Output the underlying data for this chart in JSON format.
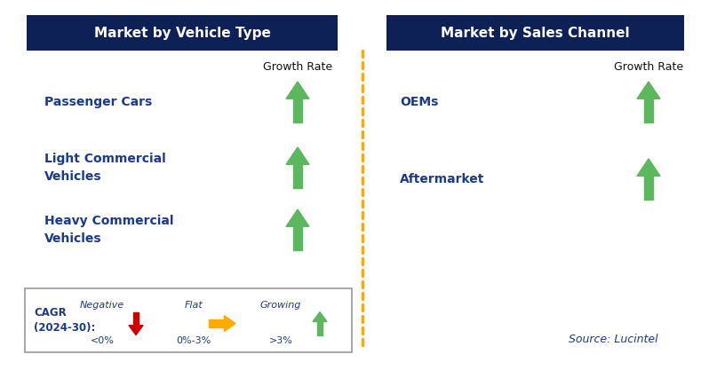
{
  "title_left": "Market by Vehicle Type",
  "title_right": "Market by Sales Channel",
  "title_bg_color": "#0d2157",
  "title_text_color": "#ffffff",
  "left_items": [
    "Passenger Cars",
    "Light Commercial\nVehicles",
    "Heavy Commercial\nVehicles"
  ],
  "right_items": [
    "OEMs",
    "Aftermarket"
  ],
  "item_text_color": "#1a3a8c",
  "growth_rate_label": "Growth Rate",
  "growth_rate_color": "#111111",
  "arrow_up_color": "#5cb85c",
  "arrow_down_color": "#cc0000",
  "arrow_flat_color": "#ffaa00",
  "dashed_line_color": "#ffaa00",
  "legend_title_line1": "CAGR",
  "legend_title_line2": "(2024-30):",
  "legend_title_color": "#1a3a8c",
  "legend_neg_label": "Negative",
  "legend_flat_label": "Flat",
  "legend_grow_label": "Growing",
  "legend_neg_val": "<0%",
  "legend_flat_val": "0%-3%",
  "legend_grow_val": ">3%",
  "source_text": "Source: Lucintel",
  "source_color": "#1a3a8c",
  "bg_color": "#ffffff",
  "fig_w": 7.98,
  "fig_h": 4.17,
  "dpi": 100
}
